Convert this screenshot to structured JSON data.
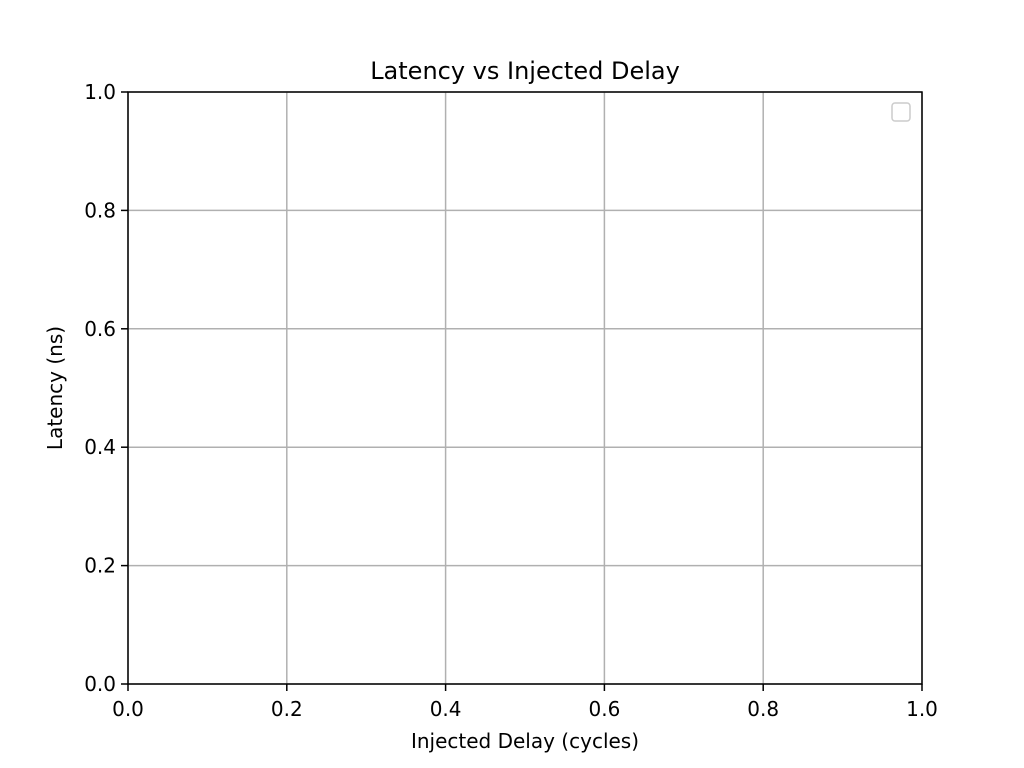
{
  "chart_data": {
    "type": "line",
    "title": "Latency vs Injected Delay",
    "xlabel": "Injected Delay (cycles)",
    "ylabel": "Latency (ns)",
    "xlim": [
      0.0,
      1.0
    ],
    "ylim": [
      0.0,
      1.0
    ],
    "x_ticks": [
      "0.0",
      "0.2",
      "0.4",
      "0.6",
      "0.8",
      "1.0"
    ],
    "y_ticks": [
      "0.0",
      "0.2",
      "0.4",
      "0.6",
      "0.8",
      "1.0"
    ],
    "series": [],
    "grid": true,
    "legend": {
      "placement": "upper right",
      "entries": []
    },
    "colors": {
      "grid": "#b0b0b0",
      "axes": "#000000",
      "legend_border": "#cccccc"
    }
  }
}
